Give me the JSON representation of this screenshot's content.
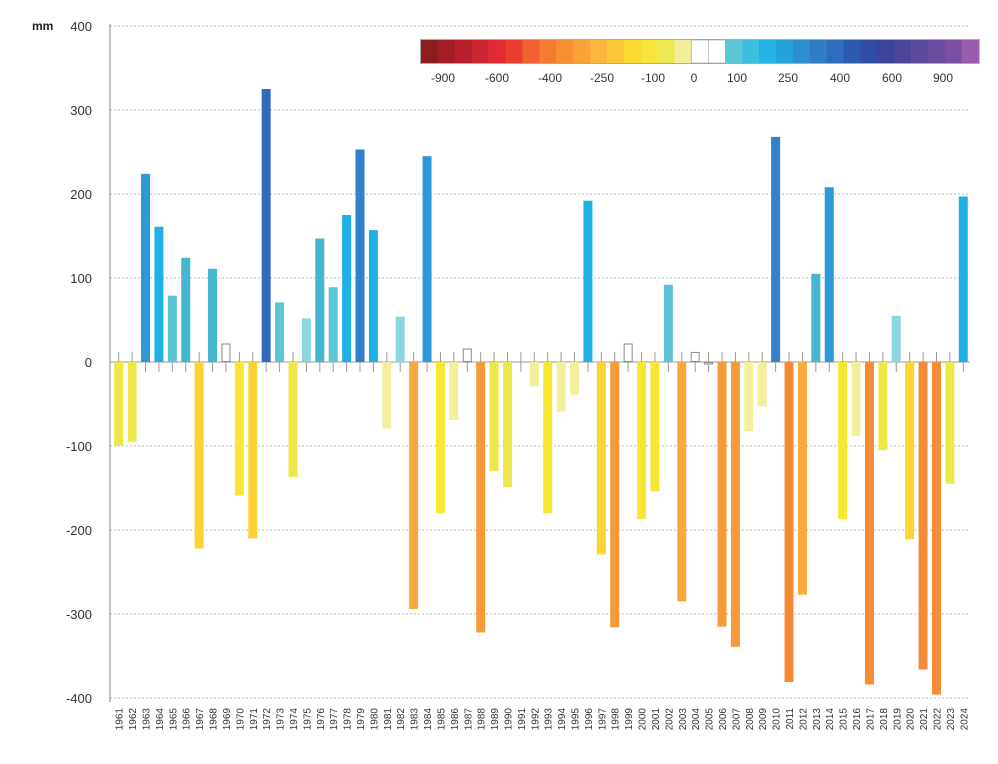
{
  "chart_data": {
    "type": "bar",
    "unit_label": "mm",
    "ylim": [
      -400,
      400
    ],
    "y_ticks": [
      400,
      300,
      200,
      100,
      0,
      -100,
      -200,
      -300,
      -400
    ],
    "grid": true,
    "categories": [
      "1961",
      "1962",
      "1963",
      "1964",
      "1965",
      "1966",
      "1967",
      "1968",
      "1969",
      "1970",
      "1971",
      "1972",
      "1973",
      "1974",
      "1975",
      "1976",
      "1977",
      "1978",
      "1979",
      "1980",
      "1981",
      "1982",
      "1983",
      "1984",
      "1985",
      "1986",
      "1987",
      "1988",
      "1989",
      "1990",
      "1991",
      "1992",
      "1993",
      "1994",
      "1995",
      "1996",
      "1997",
      "1998",
      "1999",
      "2000",
      "2001",
      "2002",
      "2003",
      "2004",
      "2005",
      "2006",
      "2007",
      "2008",
      "2009",
      "2010",
      "2011",
      "2012",
      "2013",
      "2014",
      "2015",
      "2016",
      "2017",
      "2018",
      "2019",
      "2020",
      "2021",
      "2022",
      "2023",
      "2024"
    ],
    "values": [
      -100,
      -95,
      224,
      161,
      79,
      124,
      -222,
      111,
      22,
      -159,
      -210,
      325,
      71,
      -137,
      52,
      147,
      89,
      175,
      253,
      157,
      -79,
      54,
      -294,
      245,
      -180,
      -69,
      16,
      -322,
      -130,
      -149,
      0,
      -29,
      -180,
      -59,
      -39,
      192,
      -229,
      -316,
      22,
      -187,
      -154,
      92,
      -285,
      12,
      -3,
      -315,
      -339,
      -82,
      -53,
      268,
      -381,
      -277,
      105,
      208,
      -187,
      -88,
      -384,
      -105,
      55,
      -211,
      -366,
      -396,
      -145,
      197
    ],
    "legend": {
      "placement": "top-right",
      "colors": [
        "#8c1d1d",
        "#a11f24",
        "#b7202a",
        "#cc2530",
        "#e12a32",
        "#ea3e2e",
        "#f06030",
        "#f47c32",
        "#f78f35",
        "#f9a238",
        "#fbb43c",
        "#fdc93a",
        "#fcd932",
        "#f6e63c",
        "#ecea50",
        "#f0ee9a",
        "#ffffff",
        "#ffffff",
        "#5bc8d4",
        "#3fbfe0",
        "#27b2e6",
        "#25a2dc",
        "#2d8fd0",
        "#2f7ec6",
        "#2d6cbd",
        "#2b5bb0",
        "#2f4ca6",
        "#3c449e",
        "#4c4599",
        "#5a4a99",
        "#6a4c9e",
        "#7b4fa3",
        "#9b5cae"
      ],
      "tick_labels": [
        "-900",
        "-600",
        "-400",
        "-250",
        "-100",
        "0",
        "100",
        "250",
        "400",
        "600",
        "900"
      ]
    }
  }
}
